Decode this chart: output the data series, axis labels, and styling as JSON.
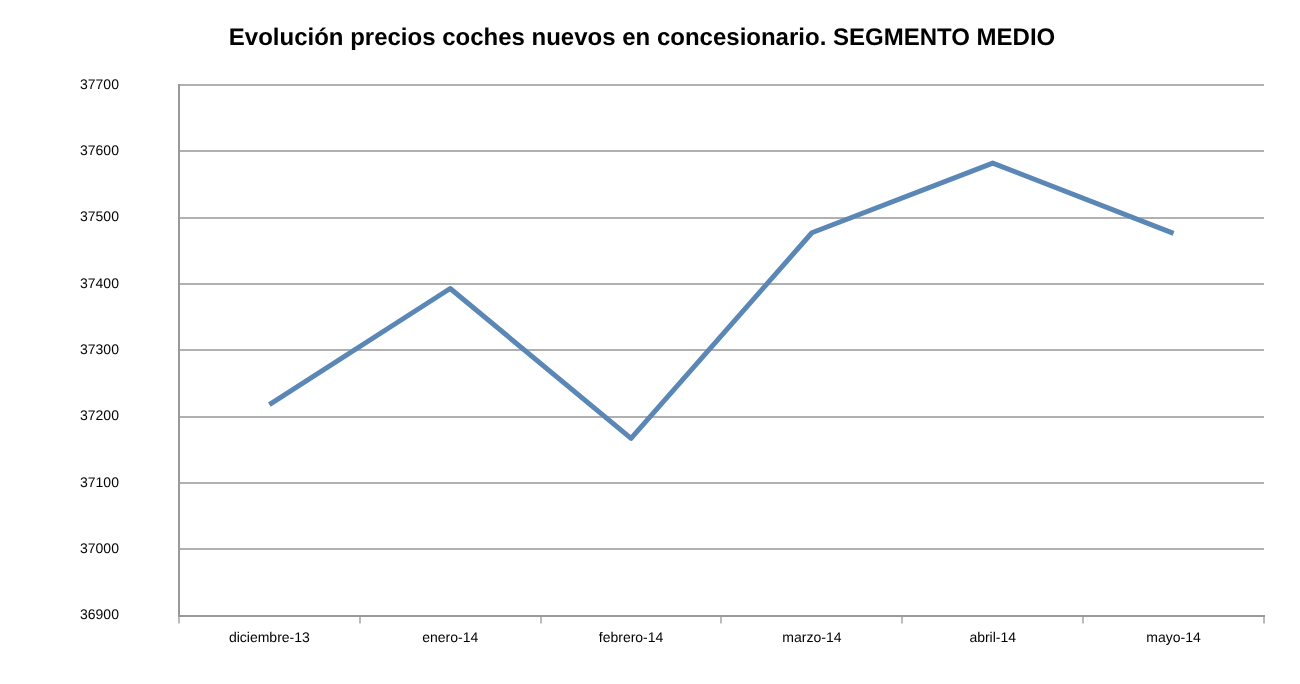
{
  "chart_data": {
    "type": "line",
    "title": "Evolución precios coches nuevos en concesionario. SEGMENTO MEDIO",
    "categories": [
      "diciembre-13",
      "enero-14",
      "febrero-14",
      "marzo-14",
      "abril-14",
      "mayo-14"
    ],
    "series": [
      {
        "color": "#5a87b5",
        "values": [
          37218,
          37393,
          37167,
          37477,
          37582,
          37476
        ]
      }
    ],
    "ylim": [
      36900,
      37700
    ],
    "yticks": [
      36900,
      37000,
      37100,
      37200,
      37300,
      37400,
      37500,
      37600,
      37700
    ],
    "grid": "y",
    "legend": false,
    "marker": "none",
    "line_style": "solid"
  }
}
